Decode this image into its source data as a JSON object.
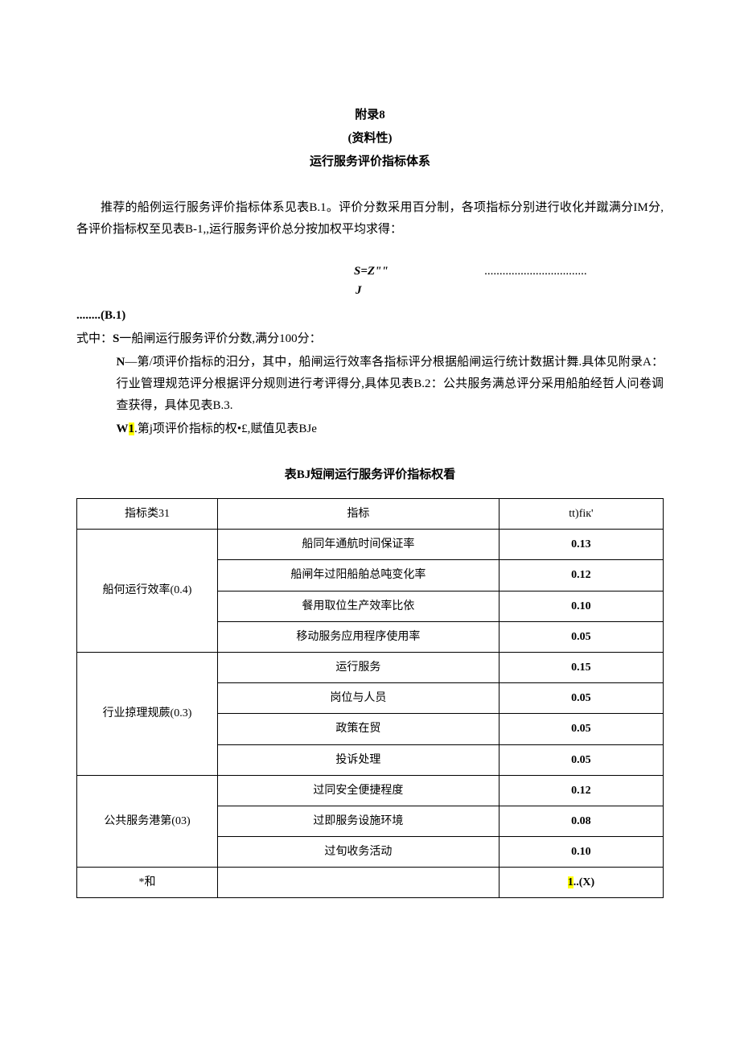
{
  "header": {
    "line1": "附录8",
    "line2": "(资料性)",
    "line3": "运行服务评价指标体系"
  },
  "intro": "推荐的船例运行服务评价指标体系见表B.1。评价分数采用百分制，各项指标分别进行收化并蹴满分IM分,各评价指标权至见表B-1,,运行服务评价总分按加权平均求得：",
  "formula": {
    "eq": "S=Z\"\"",
    "dots": "..................................",
    "j": "J"
  },
  "formula_ref": "........(B.1)",
  "def_s_prefix": "式中：",
  "def_s_label": "S",
  "def_s_text": "一船闸运行服务评价分数,满分100分：",
  "def_n_label": "N",
  "def_n_text1": "—第/项评价指标的汨分，其中，船闸运行效率各指标评分根据船闸运行统计数据计舞.具体见附录A：行业管理规范评分根据评分规则进行考评得分,具体见表B.2：公共服务满总评分采用船舶经哲人问卷调查获得，具体见表B.3.",
  "def_w_pre": "W",
  "def_w_hl": "1",
  "def_w_text": ".第j项评价指标的权•£,赋值见表BJe",
  "table_title": "表BJ短闸运行服务评价指标权看",
  "table": {
    "header": {
      "c1": "指标类31",
      "c2": "指标",
      "c3": "tt)fiк'"
    },
    "groups": [
      {
        "name": "船何运行效率(0.4)",
        "rows": [
          {
            "c2": "船同年通航时间保证率",
            "c3": "0.13"
          },
          {
            "c2": "船闸年过阳船舶总吨变化率",
            "c3": "0.12"
          },
          {
            "c2": "餐用取位生产效率比依",
            "c3": "0.10"
          },
          {
            "c2": "移动服务应用程序使用率",
            "c3": "0.05"
          }
        ]
      },
      {
        "name": "行业掠理规蕨(0.3)",
        "rows": [
          {
            "c2": "运行服务",
            "c3": "0.15"
          },
          {
            "c2": "岗位与人员",
            "c3": "0.05"
          },
          {
            "c2": "政策在贸",
            "c3": "0.05"
          },
          {
            "c2": "投诉处理",
            "c3": "0.05"
          }
        ]
      },
      {
        "name": "公共服务港第(03)",
        "rows": [
          {
            "c2": "过同安全便捷程度",
            "c3": "0.12"
          },
          {
            "c2": "过即服务设施环境",
            "c3": "0.08"
          },
          {
            "c2": "过旬收务活动",
            "c3": "0.10"
          }
        ]
      }
    ],
    "footer": {
      "c1": "*和",
      "c2": "",
      "c3_hl": "1",
      "c3_rest": "..(X)"
    }
  }
}
